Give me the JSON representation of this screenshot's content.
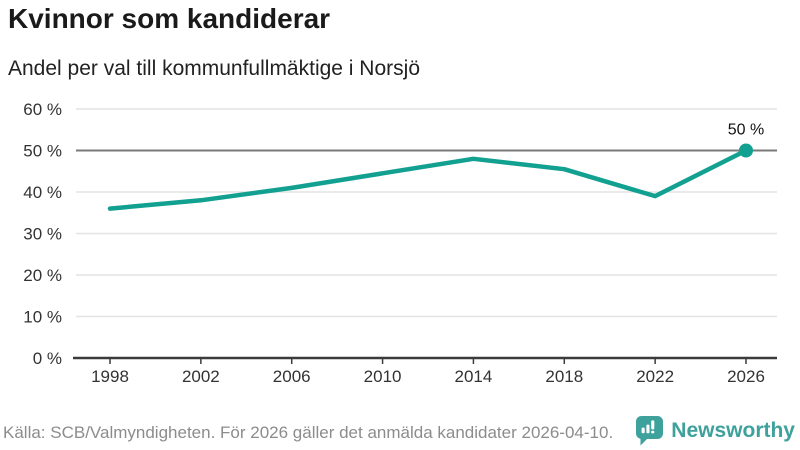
{
  "header": {
    "title": "Kvinnor som kandiderar",
    "subtitle": "Andel per val till kommunfullmäktige i Norsjö"
  },
  "chart_data": {
    "type": "line",
    "title": "Kvinnor som kandiderar",
    "subtitle": "Andel per val till kommunfullmäktige i Norsjö",
    "x": [
      1998,
      2002,
      2006,
      2010,
      2014,
      2018,
      2022,
      2026
    ],
    "x_tick_labels": [
      "1998",
      "2002",
      "2006",
      "2010",
      "2014",
      "2018",
      "2022",
      "2026"
    ],
    "values": [
      36,
      38,
      41,
      44.5,
      48,
      45.5,
      39,
      50
    ],
    "ylim": [
      0,
      60
    ],
    "y_ticks": [
      0,
      10,
      20,
      30,
      40,
      50,
      60
    ],
    "y_tick_suffix": " %",
    "grid": true,
    "highlight_gridline_value": 50,
    "end_point_label": "50 %",
    "legend": "none",
    "line_color": "#12a091",
    "marker_color": "#12a091"
  },
  "colors": {
    "line": "#12a091",
    "grid_light": "#e4e4e4",
    "grid_highlight": "#7a7a7a",
    "axis": "#3b3b3b",
    "tick_label": "#333333",
    "end_label": "#111111",
    "brand": "#3fa19c"
  },
  "footer": {
    "source": "Källa: SCB/Valmyndigheten. För 2026 gäller det anmälda kandidater 2026-04-10.",
    "brand": "Newsworthy"
  }
}
